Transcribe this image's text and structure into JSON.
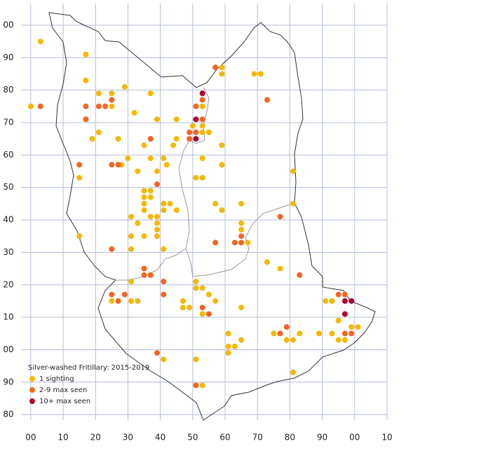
{
  "chart_data": {
    "type": "scatter",
    "legend_title": "Silver-washed Fritillary:  2015-2019",
    "xlim": [
      -3,
      110
    ],
    "ylim": [
      -21.7,
      106.7
    ],
    "xticks": [
      {
        "value": 0,
        "label": "00"
      },
      10,
      20,
      30,
      40,
      50,
      60,
      70,
      80,
      90,
      {
        "value": 100,
        "label": "00"
      },
      {
        "value": 110,
        "label": "10"
      }
    ],
    "yticks": [
      {
        "value": 100,
        "label": "00"
      },
      90,
      80,
      70,
      60,
      50,
      40,
      30,
      20,
      10,
      {
        "value": 0,
        "label": "00"
      },
      {
        "value": -10,
        "label": "90"
      },
      {
        "value": -20,
        "label": "80"
      }
    ],
    "grid": true,
    "series": [
      {
        "name": "1 sighting",
        "color": "#f5b800",
        "x": [
          3,
          17,
          17,
          29,
          21,
          25,
          0,
          25,
          32,
          39,
          45,
          53,
          50,
          53,
          53,
          55,
          21,
          19,
          27,
          45,
          44,
          35,
          59,
          33,
          30,
          28,
          37,
          39,
          41,
          42,
          15,
          35,
          37,
          35,
          37,
          35,
          35,
          41,
          43,
          41,
          45,
          39,
          37,
          31,
          33,
          39,
          39,
          39,
          31,
          35,
          15,
          41,
          31,
          51,
          53,
          53,
          59,
          57,
          59,
          65,
          65,
          65,
          67,
          81,
          81,
          69,
          71,
          59,
          59,
          73,
          77,
          31,
          31,
          33,
          25,
          47,
          47,
          49,
          51,
          51,
          53,
          55,
          53,
          57,
          65,
          61,
          61,
          63,
          65,
          61,
          41,
          51,
          53,
          75,
          77,
          79,
          81,
          83,
          89,
          91,
          93,
          95,
          93,
          95,
          97,
          99,
          101,
          81,
          37
        ],
        "values": [
          95,
          91,
          83,
          81,
          79,
          79,
          75,
          75,
          73,
          71,
          71,
          75,
          69,
          69,
          67,
          67,
          67,
          65,
          65,
          65,
          63,
          63,
          63,
          55,
          59,
          57,
          59,
          55,
          59,
          57,
          53,
          49,
          49,
          47,
          47,
          45,
          43,
          45,
          45,
          43,
          43,
          41,
          41,
          41,
          39,
          39,
          37,
          35,
          35,
          35,
          35,
          31,
          31,
          53,
          53,
          59,
          57,
          45,
          43,
          45,
          39,
          37,
          33,
          45,
          55,
          85,
          85,
          85,
          87,
          27,
          25,
          21,
          15,
          15,
          15,
          15,
          13,
          13,
          21,
          19,
          19,
          17,
          11,
          15,
          13,
          5,
          1,
          1,
          3,
          -1,
          -3,
          -3,
          -11,
          5,
          5,
          3,
          3,
          5,
          5,
          15,
          15,
          9,
          5,
          3,
          3,
          7,
          7,
          -7,
          79
        ]
      },
      {
        "name": "2-9 max seen",
        "color": "#f26522",
        "x": [
          57,
          3,
          17,
          21,
          23,
          25,
          17,
          53,
          51,
          53,
          49,
          49,
          51,
          15,
          25,
          27,
          37,
          39,
          73,
          25,
          57,
          63,
          65,
          65,
          77,
          35,
          35,
          37,
          41,
          41,
          25,
          27,
          29,
          53,
          55,
          79,
          77,
          83,
          95,
          97,
          97,
          99,
          39,
          51
        ],
        "values": [
          87,
          75,
          75,
          75,
          75,
          77,
          71,
          77,
          75,
          71,
          67,
          65,
          67,
          57,
          57,
          57,
          65,
          51,
          77,
          31,
          33,
          33,
          33,
          35,
          41,
          25,
          23,
          23,
          21,
          17,
          17,
          15,
          17,
          13,
          11,
          7,
          5,
          23,
          17,
          17,
          5,
          5,
          -1,
          -11
        ]
      },
      {
        "name": "10+ max seen",
        "color": "#b0002a",
        "x": [
          53,
          51,
          51,
          97,
          99,
          97
        ],
        "values": [
          79,
          71,
          65,
          15,
          15,
          11
        ]
      }
    ]
  }
}
